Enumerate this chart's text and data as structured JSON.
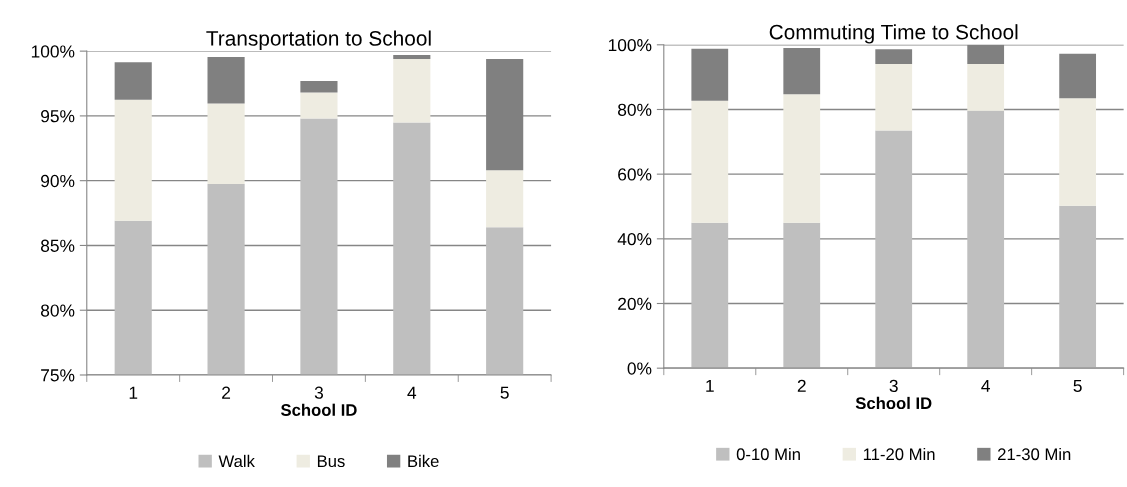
{
  "chart_data": [
    {
      "type": "bar",
      "stacked": true,
      "title": "Transportation to School",
      "xlabel": "School ID",
      "categories": [
        "1",
        "2",
        "3",
        "4",
        "5"
      ],
      "series": [
        {
          "name": "Walk",
          "color": "#bfbfbf",
          "values": [
            86.9,
            89.75,
            94.8,
            94.5,
            86.4
          ]
        },
        {
          "name": "Bus",
          "color": "#eeece1",
          "base": [
            86.9,
            89.75,
            94.8,
            94.5,
            86.4
          ],
          "values": [
            9.35,
            6.2,
            2.0,
            4.9,
            4.4
          ]
        },
        {
          "name": "Bike",
          "color": "#808080",
          "base": [
            96.25,
            95.95,
            96.8,
            99.4,
            90.8
          ],
          "values": [
            2.9,
            3.6,
            0.9,
            0.3,
            8.6
          ]
        }
      ],
      "ylim": [
        75,
        100
      ],
      "yticks": [
        {
          "value": 75,
          "label": "75%"
        },
        {
          "value": 80,
          "label": "80%"
        },
        {
          "value": 85,
          "label": "85%"
        },
        {
          "value": 90,
          "label": "90%"
        },
        {
          "value": 95,
          "label": "95%"
        },
        {
          "value": 100,
          "label": "100%"
        }
      ],
      "grid": "y",
      "legend": "bottom"
    },
    {
      "type": "bar",
      "stacked": true,
      "title": "Commuting Time to School",
      "xlabel": "School ID",
      "categories": [
        "1",
        "2",
        "3",
        "4",
        "5"
      ],
      "series": [
        {
          "name": "0-10 Min",
          "color": "#bfbfbf",
          "values": [
            45,
            45,
            73.5,
            79.6,
            50.2
          ]
        },
        {
          "name": "11-20 Min",
          "color": "#eeece1",
          "values": [
            37.7,
            39.7,
            20.6,
            14.5,
            33.3
          ]
        },
        {
          "name": "21-30 Min",
          "color": "#808080",
          "values": [
            16.1,
            14.3,
            4.5,
            5.9,
            13.7
          ]
        }
      ],
      "ylim": [
        0,
        100
      ],
      "yticks": [
        {
          "value": 0,
          "label": "0%"
        },
        {
          "value": 20,
          "label": "20%"
        },
        {
          "value": 40,
          "label": "40%"
        },
        {
          "value": 60,
          "label": "60%"
        },
        {
          "value": 80,
          "label": "80%"
        },
        {
          "value": 100,
          "label": "100%"
        }
      ],
      "grid": "y",
      "legend": "bottom"
    }
  ]
}
